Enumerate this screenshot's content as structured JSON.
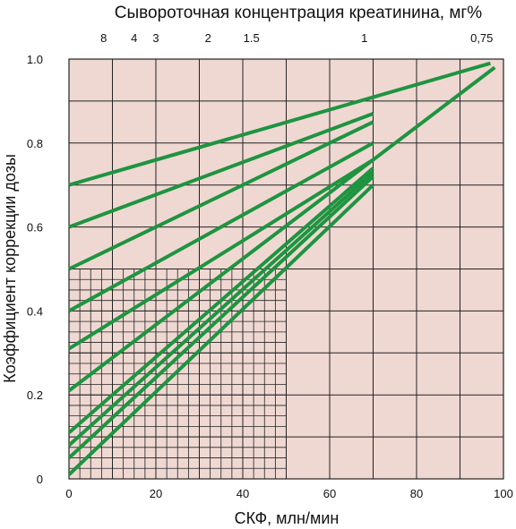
{
  "chart_data": {
    "type": "line",
    "title": "Сывороточная концентрация креатинина, мг%",
    "xlabel": "СКФ, млн/мин",
    "ylabel": "Коэффициент коррекции дозы",
    "xlim": [
      0,
      100
    ],
    "ylim": [
      0,
      1.0
    ],
    "x_ticks": [
      "0",
      "20",
      "40",
      "60",
      "80",
      "100"
    ],
    "y_ticks": [
      "0",
      "0.2",
      "0.4",
      "0.6",
      "0.8",
      "1.0"
    ],
    "top_ticks": [
      {
        "label": "8",
        "x": 8
      },
      {
        "label": "4",
        "x": 15
      },
      {
        "label": "3",
        "x": 20
      },
      {
        "label": "2",
        "x": 32
      },
      {
        "label": "1.5",
        "x": 42
      },
      {
        "label": "1",
        "x": 68
      },
      {
        "label": "0,75",
        "x": 95
      }
    ],
    "grid": true,
    "fine_grid_region": {
      "x": [
        0,
        50
      ],
      "y": [
        0,
        0.5
      ]
    },
    "colors": {
      "background": "#efd8d2",
      "grid": "#222222",
      "lines": "#1e9440"
    },
    "series": [
      {
        "x": [
          0,
          97
        ],
        "y": [
          0.7,
          0.99
        ]
      },
      {
        "x": [
          0,
          70
        ],
        "y": [
          0.6,
          0.87
        ]
      },
      {
        "x": [
          0,
          70
        ],
        "y": [
          0.5,
          0.85
        ]
      },
      {
        "x": [
          0,
          70
        ],
        "y": [
          0.4,
          0.8
        ]
      },
      {
        "x": [
          0,
          70
        ],
        "y": [
          0.31,
          0.76
        ]
      },
      {
        "x": [
          0,
          98
        ],
        "y": [
          0.21,
          0.98
        ]
      },
      {
        "x": [
          0,
          70
        ],
        "y": [
          0.11,
          0.74
        ]
      },
      {
        "x": [
          0,
          70
        ],
        "y": [
          0.08,
          0.73
        ]
      },
      {
        "x": [
          0,
          70
        ],
        "y": [
          0.05,
          0.72
        ]
      },
      {
        "x": [
          0,
          70
        ],
        "y": [
          0.01,
          0.7
        ]
      }
    ]
  }
}
